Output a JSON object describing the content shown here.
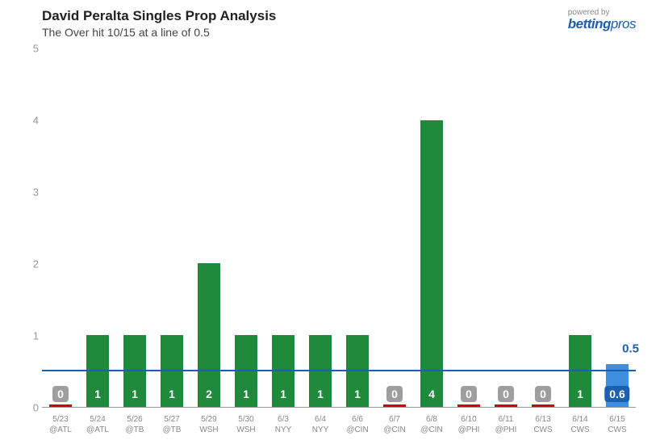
{
  "header": {
    "title": "David Peralta Singles Prop Analysis",
    "subtitle": "The Over hit 10/15 at a line of 0.5"
  },
  "branding": {
    "powered_by": "powered by",
    "brand_b": "betting",
    "brand_p": "pros"
  },
  "chart": {
    "type": "bar",
    "y_max": 5,
    "y_ticks": [
      0,
      1,
      2,
      3,
      4,
      5
    ],
    "threshold": 0.5,
    "threshold_label": "0.5",
    "colors": {
      "over": "#208a3c",
      "under_bar": "#d40000",
      "under_badge": "#9e9e9e",
      "proj_bar": "#3f8fe0",
      "proj_badge": "#1c5fb0",
      "line": "#1c5fb0"
    },
    "games": [
      {
        "date": "5/23",
        "opp": "@ATL",
        "value": 0,
        "label": "0",
        "kind": "under"
      },
      {
        "date": "5/24",
        "opp": "@ATL",
        "value": 1,
        "label": "1",
        "kind": "over"
      },
      {
        "date": "5/26",
        "opp": "@TB",
        "value": 1,
        "label": "1",
        "kind": "over"
      },
      {
        "date": "5/27",
        "opp": "@TB",
        "value": 1,
        "label": "1",
        "kind": "over"
      },
      {
        "date": "5/29",
        "opp": "WSH",
        "value": 2,
        "label": "2",
        "kind": "over"
      },
      {
        "date": "5/30",
        "opp": "WSH",
        "value": 1,
        "label": "1",
        "kind": "over"
      },
      {
        "date": "6/3",
        "opp": "NYY",
        "value": 1,
        "label": "1",
        "kind": "over"
      },
      {
        "date": "6/4",
        "opp": "NYY",
        "value": 1,
        "label": "1",
        "kind": "over"
      },
      {
        "date": "6/6",
        "opp": "@CIN",
        "value": 1,
        "label": "1",
        "kind": "over"
      },
      {
        "date": "6/7",
        "opp": "@CIN",
        "value": 0,
        "label": "0",
        "kind": "under"
      },
      {
        "date": "6/8",
        "opp": "@CIN",
        "value": 4,
        "label": "4",
        "kind": "over"
      },
      {
        "date": "6/10",
        "opp": "@PHI",
        "value": 0,
        "label": "0",
        "kind": "under"
      },
      {
        "date": "6/11",
        "opp": "@PHI",
        "value": 0,
        "label": "0",
        "kind": "under"
      },
      {
        "date": "6/13",
        "opp": "CWS",
        "value": 0,
        "label": "0",
        "kind": "under"
      },
      {
        "date": "6/14",
        "opp": "CWS",
        "value": 1,
        "label": "1",
        "kind": "over"
      },
      {
        "date": "6/15",
        "opp": "CWS",
        "value": 0.6,
        "label": "0.6",
        "kind": "proj"
      }
    ]
  }
}
